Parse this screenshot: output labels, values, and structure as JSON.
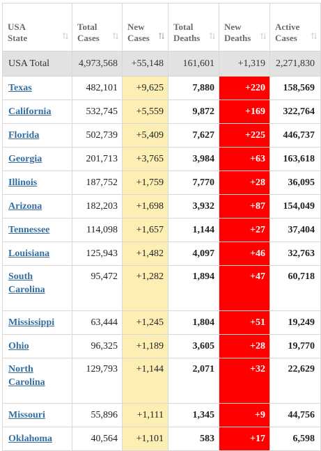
{
  "columns": [
    {
      "line1": "USA",
      "line2": "State",
      "sort": "⇅",
      "active": false
    },
    {
      "line1": "Total",
      "line2": "Cases",
      "sort": "⇅",
      "active": false
    },
    {
      "line1": "New",
      "line2": "Cases",
      "sort": "⇅",
      "active": true
    },
    {
      "line1": "Total",
      "line2": "Deaths",
      "sort": "⇅",
      "active": false
    },
    {
      "line1": "New",
      "line2": "Deaths",
      "sort": "⇅",
      "active": false
    },
    {
      "line1": "Active",
      "line2": "Cases",
      "sort": "⇅",
      "active": false
    }
  ],
  "total": {
    "state": "USA Total",
    "total_cases": "4,973,568",
    "new_cases": "+55,148",
    "total_deaths": "161,601",
    "new_deaths": "+1,319",
    "active_cases": "2,271,830"
  },
  "rows": [
    {
      "state": "Texas",
      "total_cases": "482,101",
      "new_cases": "+9,625",
      "total_deaths": "7,880",
      "new_deaths": "+220",
      "active_cases": "158,569"
    },
    {
      "state": "California",
      "total_cases": "532,745",
      "new_cases": "+5,559",
      "total_deaths": "9,872",
      "new_deaths": "+169",
      "active_cases": "322,764"
    },
    {
      "state": "Florida",
      "total_cases": "502,739",
      "new_cases": "+5,409",
      "total_deaths": "7,627",
      "new_deaths": "+225",
      "active_cases": "446,737"
    },
    {
      "state": "Georgia",
      "total_cases": "201,713",
      "new_cases": "+3,765",
      "total_deaths": "3,984",
      "new_deaths": "+63",
      "active_cases": "163,618"
    },
    {
      "state": "Illinois",
      "total_cases": "187,752",
      "new_cases": "+1,759",
      "total_deaths": "7,770",
      "new_deaths": "+28",
      "active_cases": "36,095"
    },
    {
      "state": "Arizona",
      "total_cases": "182,203",
      "new_cases": "+1,698",
      "total_deaths": "3,932",
      "new_deaths": "+87",
      "active_cases": "154,049"
    },
    {
      "state": "Tennessee",
      "total_cases": "114,098",
      "new_cases": "+1,657",
      "total_deaths": "1,144",
      "new_deaths": "+27",
      "active_cases": "37,404"
    },
    {
      "state": "Louisiana",
      "total_cases": "125,943",
      "new_cases": "+1,482",
      "total_deaths": "4,097",
      "new_deaths": "+46",
      "active_cases": "32,763"
    },
    {
      "state": "South Carolina",
      "total_cases": "95,472",
      "new_cases": "+1,282",
      "total_deaths": "1,894",
      "new_deaths": "+47",
      "active_cases": "60,718"
    },
    {
      "state": "Mississippi",
      "total_cases": "63,444",
      "new_cases": "+1,245",
      "total_deaths": "1,804",
      "new_deaths": "+51",
      "active_cases": "19,249"
    },
    {
      "state": "Ohio",
      "total_cases": "96,325",
      "new_cases": "+1,189",
      "total_deaths": "3,605",
      "new_deaths": "+28",
      "active_cases": "19,770"
    },
    {
      "state": "North Carolina",
      "total_cases": "129,793",
      "new_cases": "+1,144",
      "total_deaths": "2,071",
      "new_deaths": "+32",
      "active_cases": "22,629"
    },
    {
      "state": "Missouri",
      "total_cases": "55,896",
      "new_cases": "+1,111",
      "total_deaths": "1,345",
      "new_deaths": "+9",
      "active_cases": "44,756"
    },
    {
      "state": "Oklahoma",
      "total_cases": "40,564",
      "new_cases": "+1,101",
      "total_deaths": "583",
      "new_deaths": "+17",
      "active_cases": "6,598"
    }
  ],
  "colors": {
    "header_text": "#6b6b6b",
    "link": "#356e9e",
    "new_cases_bg": "#fdefb3",
    "new_deaths_bg": "#ff0000",
    "total_row_bg": "#e2e2e2",
    "border": "#d7d7d7"
  },
  "icons": {
    "sort": "sort-arrows-icon"
  }
}
